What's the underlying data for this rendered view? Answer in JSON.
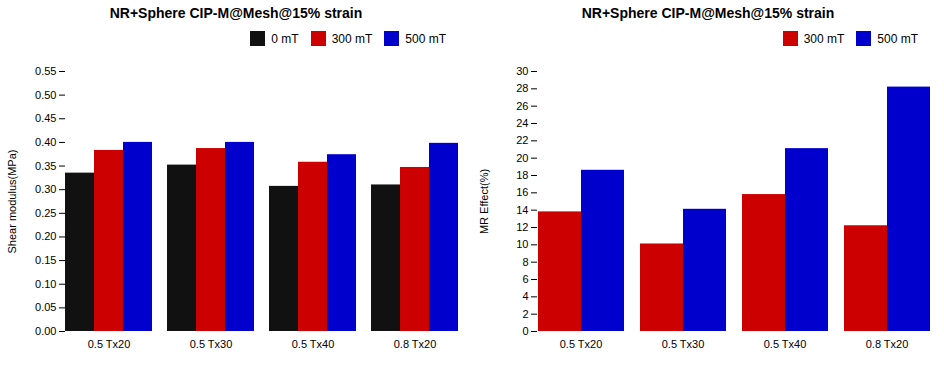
{
  "chart_data": [
    {
      "type": "bar",
      "title": "NR+Sphere CIP-M@Mesh@15% strain",
      "categories": [
        "0.5 Tx20",
        "0.5 Tx30",
        "0.5 Tx40",
        "0.8 Tx20"
      ],
      "ylabel": "Shear modulus(MPa)",
      "ylim": [
        0.0,
        0.55
      ],
      "yticks": [
        {
          "value": 0.0,
          "label": "0.00"
        },
        {
          "value": 0.05,
          "label": "0.05"
        },
        {
          "value": 0.1,
          "label": "0.10"
        },
        {
          "value": 0.15,
          "label": "0.15"
        },
        {
          "value": 0.2,
          "label": "0.20"
        },
        {
          "value": 0.25,
          "label": "0.25"
        },
        {
          "value": 0.3,
          "label": "0.30"
        },
        {
          "value": 0.35,
          "label": "0.35"
        },
        {
          "value": 0.4,
          "label": "0.40"
        },
        {
          "value": 0.45,
          "label": "0.45"
        },
        {
          "value": 0.5,
          "label": "0.50"
        },
        {
          "value": 0.55,
          "label": "0.55"
        }
      ],
      "series": [
        {
          "name": "0 mT",
          "color": "#111111",
          "values": [
            0.335,
            0.352,
            0.307,
            0.31
          ]
        },
        {
          "name": "300 mT",
          "color": "#cc0000",
          "values": [
            0.383,
            0.387,
            0.358,
            0.347
          ]
        },
        {
          "name": "500 mT",
          "color": "#0000cc",
          "values": [
            0.4,
            0.4,
            0.374,
            0.398
          ]
        }
      ],
      "legend": "upper right",
      "grid": false
    },
    {
      "type": "bar",
      "title": "NR+Sphere CIP-M@Mesh@15% strain",
      "categories": [
        "0.5 Tx20",
        "0.5 Tx30",
        "0.5 Tx40",
        "0.8 Tx20"
      ],
      "ylabel": "MR Effect(%)",
      "ylim": [
        0,
        30
      ],
      "yticks": [
        0,
        2,
        4,
        6,
        8,
        10,
        12,
        14,
        16,
        18,
        20,
        22,
        24,
        26,
        28,
        30
      ],
      "series": [
        {
          "name": "300 mT",
          "color": "#cc0000",
          "values": [
            13.8,
            10.1,
            15.8,
            12.2
          ]
        },
        {
          "name": "500 mT",
          "color": "#0000cc",
          "values": [
            18.6,
            14.1,
            21.1,
            28.2
          ]
        }
      ],
      "legend": "upper right",
      "grid": false
    }
  ]
}
